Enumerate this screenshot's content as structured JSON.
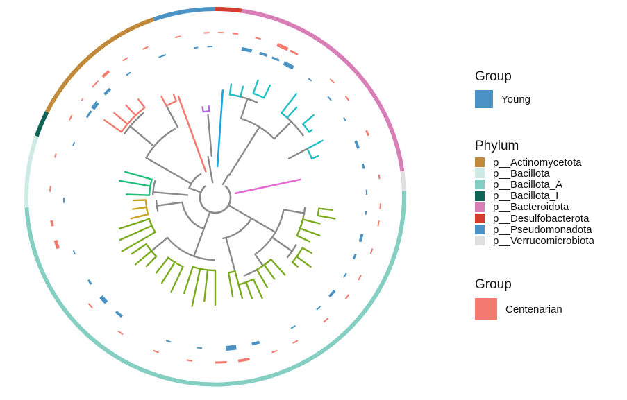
{
  "legend_young": {
    "title": "Group",
    "label": "Young",
    "color": "#4a93c4"
  },
  "legend_phylum": {
    "title": "Phylum",
    "items": [
      {
        "label": "p__Actinomycetota",
        "color": "#c08a3a"
      },
      {
        "label": "p__Bacillota",
        "color": "#cdebe4"
      },
      {
        "label": "p__Bacillota_A",
        "color": "#84cfc2"
      },
      {
        "label": "p__Bacillota_I",
        "color": "#0f6455"
      },
      {
        "label": "p__Bacteroidota",
        "color": "#d87fb8"
      },
      {
        "label": "p__Desulfobacterota",
        "color": "#d63b2f"
      },
      {
        "label": "p__Pseudomonadota",
        "color": "#4a93c4"
      },
      {
        "label": "p__Verrucomicrobiota",
        "color": "#e0e0e0"
      }
    ]
  },
  "legend_centenarian": {
    "title": "Group",
    "label": "Centenarian",
    "color": "#f27a6e"
  },
  "tree_colors": {
    "backbone": "#8a8a8a",
    "olive": "#7aab1e",
    "teal": "#1fbfc4",
    "green": "#1fbf7a",
    "mustard": "#c9a222",
    "salmon": "#f27a6e",
    "blue": "#1aa6e0",
    "purple": "#b56be0",
    "magenta": "#e26ad2"
  }
}
